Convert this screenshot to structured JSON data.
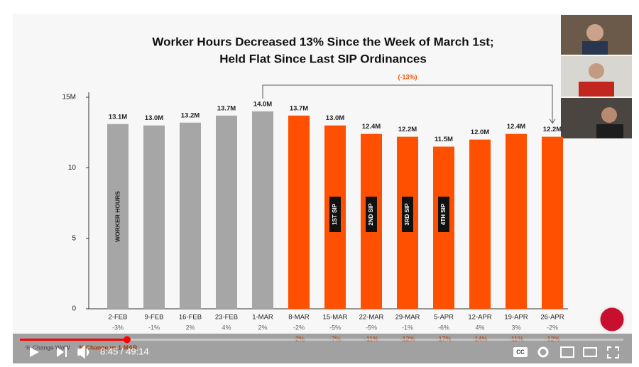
{
  "chart_data": {
    "type": "bar",
    "title": [
      "Worker Hours Decreased 13% Since the Week of March 1st;",
      "Held Flat Since Last SIP Ordinances"
    ],
    "categories": [
      "2-FEB",
      "9-FEB",
      "16-FEB",
      "23-FEB",
      "1-MAR",
      "8-MAR",
      "15-MAR",
      "22-MAR",
      "29-MAR",
      "5-APR",
      "12-APR",
      "19-APR",
      "26-APR"
    ],
    "values": [
      13.1,
      13.0,
      13.2,
      13.7,
      14.0,
      13.7,
      13.0,
      12.4,
      12.2,
      11.5,
      12.0,
      12.4,
      12.2
    ],
    "value_labels": [
      "13.1M",
      "13.0M",
      "13.2M",
      "13.7M",
      "14.0M",
      "13.7M",
      "13.0M",
      "12.4M",
      "12.2M",
      "11.5M",
      "12.0M",
      "12.4M",
      "12.2M"
    ],
    "colors": [
      "#a6a6a6",
      "#a6a6a6",
      "#a6a6a6",
      "#a6a6a6",
      "#a6a6a6",
      "#fe5000",
      "#fe5000",
      "#fe5000",
      "#fe5000",
      "#fe5000",
      "#fe5000",
      "#fe5000",
      "#fe5000"
    ],
    "bar_notes": [
      "WORKER HOURS",
      null,
      null,
      null,
      null,
      null,
      "1ST SIP",
      "2ND SIP",
      "3RD SIP",
      "4TH SIP",
      null,
      null,
      null
    ],
    "ylim": [
      0,
      15
    ],
    "yticks": [
      0,
      5,
      10,
      {
        "value": 15,
        "label": "15M"
      }
    ],
    "grid": false,
    "annotation": "(-13%)",
    "rows": [
      {
        "label": "% Change WoW",
        "color": "#666666",
        "values": [
          "-3%",
          "-1%",
          "2%",
          "4%",
          "2%",
          "-2%",
          "-5%",
          "-5%",
          "-1%",
          "-6%",
          "4%",
          "3%",
          "-2%"
        ]
      },
      {
        "label": "% Change vs 1-MAR",
        "color": "#fe5000",
        "values": [
          null,
          null,
          null,
          null,
          null,
          "-2%",
          "-7%",
          "-11%",
          "-12%",
          "-17%",
          "-14%",
          "-11%",
          "-12%"
        ]
      }
    ]
  },
  "player": {
    "time": "8:45 / 49:14",
    "cc": "CC"
  }
}
